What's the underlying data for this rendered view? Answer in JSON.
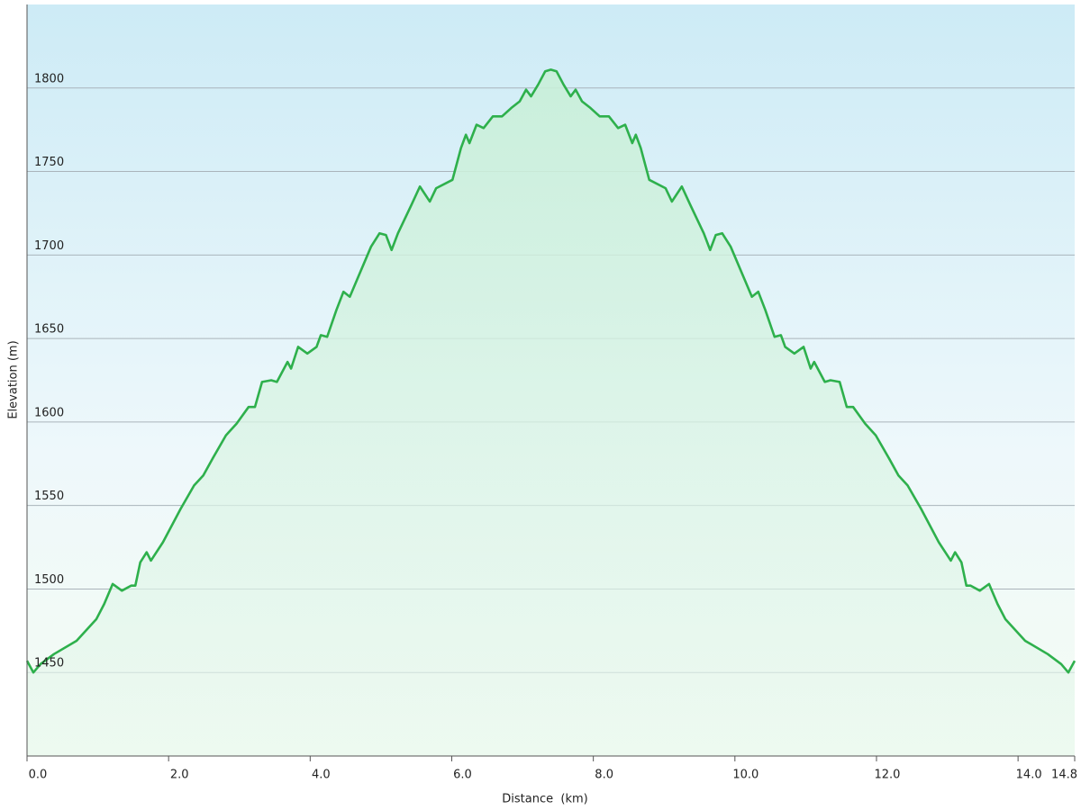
{
  "chart_data": {
    "type": "area-line",
    "x_label": "Distance  (km)",
    "y_label": "Elevation (m)",
    "xlim": [
      0,
      14.8
    ],
    "ylim": [
      1400,
      1850
    ],
    "xticks": [
      {
        "value": 0,
        "label": "0.0"
      },
      {
        "value": 2,
        "label": "2.0"
      },
      {
        "value": 4,
        "label": "4.0"
      },
      {
        "value": 6,
        "label": "6.0"
      },
      {
        "value": 8,
        "label": "8.0"
      },
      {
        "value": 10,
        "label": "10.0"
      },
      {
        "value": 12,
        "label": "12.0"
      },
      {
        "value": 14,
        "label": "14.0"
      },
      14.8
    ],
    "yticks": [
      1450,
      1500,
      1550,
      1600,
      1650,
      1700,
      1750,
      1800
    ],
    "grid": true,
    "color": "#2eb04c",
    "x": [
      0,
      0.09,
      0.19,
      0.38,
      0.7,
      0.98,
      1.09,
      1.21,
      1.34,
      1.47,
      1.53,
      1.6,
      1.69,
      1.75,
      1.92,
      2.17,
      2.36,
      2.49,
      2.62,
      2.81,
      2.96,
      3.13,
      3.22,
      3.32,
      3.45,
      3.53,
      3.68,
      3.73,
      3.83,
      3.96,
      4.09,
      4.15,
      4.24,
      4.37,
      4.47,
      4.56,
      4.66,
      4.86,
      4.98,
      5.07,
      5.15,
      5.24,
      5.43,
      5.55,
      5.69,
      5.78,
      6.01,
      6.13,
      6.2,
      6.25,
      6.35,
      6.45,
      6.58,
      6.71,
      6.84,
      6.96,
      7.05,
      7.12,
      7.22,
      7.32,
      7.4,
      7.48,
      7.58,
      7.68,
      7.75,
      7.84,
      7.96,
      8.09,
      8.22,
      8.35,
      8.45,
      8.55,
      8.6,
      8.67,
      8.79,
      9.02,
      9.11,
      9.25,
      9.37,
      9.56,
      9.65,
      9.73,
      9.82,
      9.94,
      10.14,
      10.24,
      10.33,
      10.43,
      10.56,
      10.65,
      10.71,
      10.84,
      10.97,
      11.07,
      11.12,
      11.27,
      11.35,
      11.48,
      11.58,
      11.67,
      11.84,
      11.99,
      12.18,
      12.31,
      12.44,
      12.63,
      12.88,
      13.05,
      13.11,
      13.2,
      13.27,
      13.33,
      13.46,
      13.59,
      13.71,
      13.82,
      14.1,
      14.42,
      14.61,
      14.71,
      14.8
    ],
    "values": [
      1457,
      1450,
      1455,
      1461,
      1469,
      1482,
      1491,
      1503,
      1499,
      1502,
      1502,
      1516,
      1522,
      1517,
      1528,
      1548,
      1562,
      1568,
      1578,
      1592,
      1599,
      1609,
      1609,
      1624,
      1625,
      1624,
      1636,
      1632,
      1645,
      1641,
      1645,
      1652,
      1651,
      1667,
      1678,
      1675,
      1685,
      1705,
      1713,
      1712,
      1703,
      1713,
      1730,
      1741,
      1732,
      1740,
      1745,
      1764,
      1772,
      1767,
      1778,
      1776,
      1783,
      1783,
      1788,
      1792,
      1799,
      1795,
      1802,
      1810,
      1811,
      1810,
      1802,
      1795,
      1799,
      1792,
      1788,
      1783,
      1783,
      1776,
      1778,
      1767,
      1772,
      1764,
      1745,
      1740,
      1732,
      1741,
      1730,
      1713,
      1703,
      1712,
      1713,
      1705,
      1685,
      1675,
      1678,
      1667,
      1651,
      1652,
      1645,
      1641,
      1645,
      1632,
      1636,
      1624,
      1625,
      1624,
      1609,
      1609,
      1599,
      1592,
      1578,
      1568,
      1562,
      1548,
      1528,
      1517,
      1522,
      1516,
      1502,
      1502,
      1499,
      1503,
      1491,
      1482,
      1469,
      1461,
      1455,
      1450,
      1457
    ]
  }
}
